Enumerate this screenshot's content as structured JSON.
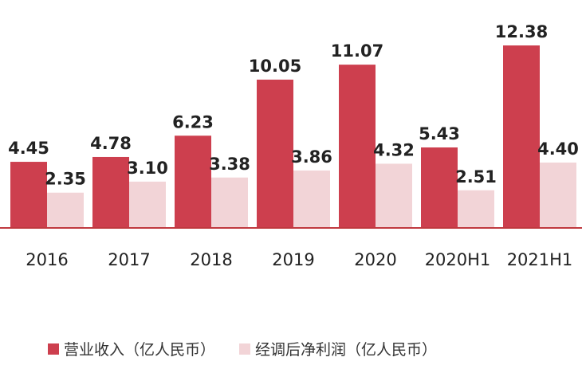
{
  "chart_data": {
    "type": "bar",
    "categories": [
      "2016",
      "2017",
      "2018",
      "2019",
      "2020",
      "2020H1",
      "2021H1"
    ],
    "series": [
      {
        "name": "营业收入（亿人民币）",
        "values": [
          4.45,
          4.78,
          6.23,
          10.05,
          11.07,
          5.43,
          12.38
        ],
        "color": "#cd3f4e"
      },
      {
        "name": "经调后净利润（亿人民币）",
        "values": [
          2.35,
          3.1,
          3.38,
          3.86,
          4.32,
          2.51,
          4.4
        ],
        "color": "#f2d4d7"
      }
    ],
    "ylim": [
      0,
      12.38
    ],
    "grid": false,
    "legend_position": "bottom",
    "data_labels": true,
    "axis_color": "#c0393f"
  }
}
